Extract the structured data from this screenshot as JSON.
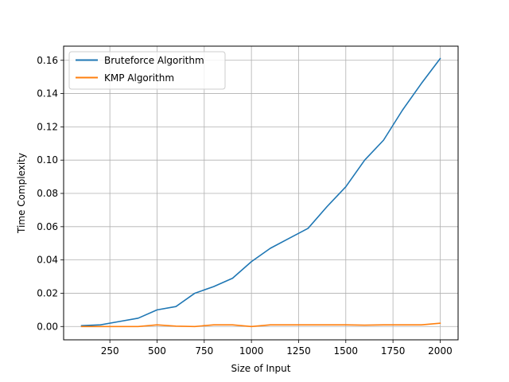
{
  "chart_data": {
    "type": "line",
    "title": "",
    "xlabel": "Size of Input",
    "ylabel": "Time Complexity",
    "xlim": [
      5,
      2095
    ],
    "ylim": [
      -0.008,
      0.1685
    ],
    "xticks": [
      250,
      500,
      750,
      1000,
      1250,
      1500,
      1750,
      2000
    ],
    "xtick_labels": [
      "250",
      "500",
      "750",
      "1000",
      "1250",
      "1500",
      "1750",
      "2000"
    ],
    "yticks": [
      0.0,
      0.02,
      0.04,
      0.06,
      0.08,
      0.1,
      0.12,
      0.14,
      0.16
    ],
    "ytick_labels": [
      "0.00",
      "0.02",
      "0.04",
      "0.06",
      "0.08",
      "0.10",
      "0.12",
      "0.14",
      "0.16"
    ],
    "grid": true,
    "legend_position": "top-left",
    "x": [
      100,
      200,
      300,
      400,
      500,
      600,
      700,
      800,
      900,
      1000,
      1100,
      1200,
      1300,
      1400,
      1500,
      1600,
      1700,
      1800,
      1900,
      2000
    ],
    "series": [
      {
        "name": "Bruteforce Algorithm",
        "color": "#1f77b4",
        "values": [
          0.0005,
          0.001,
          0.003,
          0.005,
          0.01,
          0.012,
          0.02,
          0.024,
          0.029,
          0.039,
          0.047,
          0.053,
          0.059,
          0.072,
          0.084,
          0.1,
          0.112,
          0.13,
          0.146,
          0.161
        ]
      },
      {
        "name": "KMP Algorithm",
        "color": "#ff7f0e",
        "values": [
          0.0,
          0.0,
          0.0,
          0.0,
          0.001,
          0.0002,
          0.0,
          0.001,
          0.001,
          0.0,
          0.001,
          0.001,
          0.001,
          0.001,
          0.001,
          0.0008,
          0.001,
          0.001,
          0.001,
          0.002
        ]
      }
    ]
  }
}
